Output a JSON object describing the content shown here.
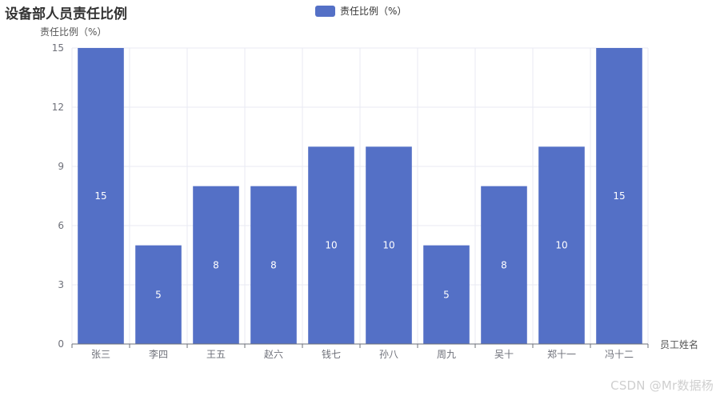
{
  "title": "设备部人员责任比例",
  "watermark": "CSDN @Mr数据杨",
  "colors": {
    "bar": "#5470c6",
    "grid": "#e8eaf3",
    "axis": "#6e7079",
    "bar_label": "#ffffff"
  },
  "chart_data": {
    "type": "bar",
    "title": "设备部人员责任比例",
    "xlabel": "员工姓名",
    "ylabel": "责任比例（%）",
    "categories": [
      "张三",
      "李四",
      "王五",
      "赵六",
      "钱七",
      "孙八",
      "周九",
      "吴十",
      "郑十一",
      "冯十二"
    ],
    "series": [
      {
        "name": "责任比例（%）",
        "values": [
          15,
          5,
          8,
          8,
          10,
          10,
          5,
          8,
          10,
          15
        ]
      }
    ],
    "ylim": [
      0,
      15
    ],
    "yticks": [
      0,
      3,
      6,
      9,
      12,
      15
    ],
    "grid": true,
    "legend_position": "top-center",
    "data_labels": "inside"
  }
}
